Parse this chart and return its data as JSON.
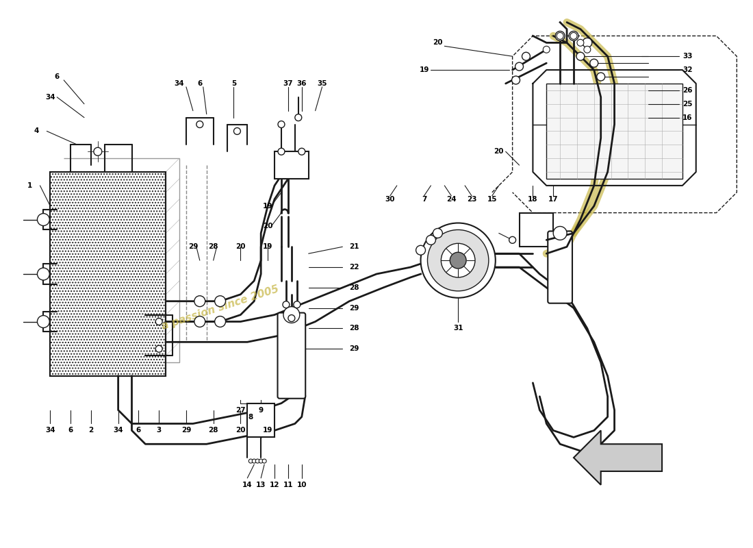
{
  "bg_color": "#ffffff",
  "line_color": "#1a1a1a",
  "watermark_color": "#c8b84a",
  "watermark_text": "a passion since 2005",
  "condenser_hatch_color": "#cccccc",
  "arrow_fill": "#cccccc",
  "insulation_color": "#c8b84a"
}
